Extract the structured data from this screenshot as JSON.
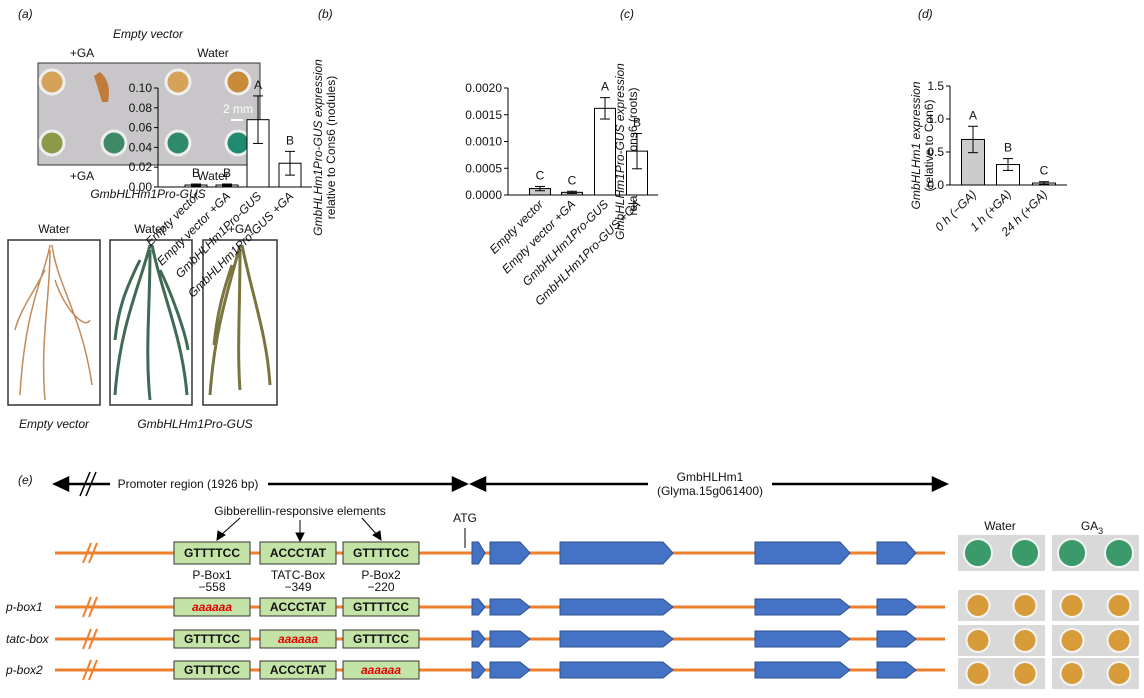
{
  "chart_data": [
    {
      "type": "bar",
      "panel": "(b)",
      "ylabel": [
        "GmbHLHm1Pro-GUS expression",
        "relative to Cons6 (nodules)"
      ],
      "categories": [
        "Empty vector",
        "Empty vector +GA",
        "GmbHLHm1Pro-GUS",
        "GmbHLHm1Pro-GUS +GA"
      ],
      "values": [
        0.002,
        0.002,
        0.068,
        0.024
      ],
      "errors": [
        0.001,
        0.001,
        0.024,
        0.012
      ],
      "letters": [
        "B",
        "B",
        "A",
        "B"
      ],
      "colors": [
        "#ffffff",
        "#ffffff",
        "#ffffff",
        "#ffffff"
      ],
      "ylim": [
        0,
        0.1
      ],
      "yticks": [
        {
          "value": 0,
          "label": "0.00"
        },
        {
          "value": 0.02,
          "label": "0.02"
        },
        {
          "value": 0.04,
          "label": "0.04"
        },
        {
          "value": 0.06,
          "label": "0.06"
        },
        {
          "value": 0.08,
          "label": "0.08"
        },
        {
          "value": 0.1,
          "label": "0.10"
        }
      ]
    },
    {
      "type": "bar",
      "panel": "(c)",
      "ylabel": [
        "GmbHLHm1Pro-GUS expression",
        "relative to Cons6 (roots)"
      ],
      "categories": [
        "Empty vector",
        "Empty vector +GA",
        "GmbHLHm1Pro-GUS",
        "GmbHLHm1Pro-GUS +GA"
      ],
      "values": [
        0.00012,
        5e-05,
        0.00162,
        0.00082
      ],
      "errors": [
        4e-05,
        2e-05,
        0.0002,
        0.00033
      ],
      "letters": [
        "C",
        "C",
        "A",
        "B"
      ],
      "colors": [
        "#cccccc",
        "#cccccc",
        "#ffffff",
        "#ffffff"
      ],
      "ylim": [
        0,
        0.002
      ],
      "yticks": [
        {
          "value": 0,
          "label": "0.0000"
        },
        {
          "value": 0.0005,
          "label": "0.0005"
        },
        {
          "value": 0.001,
          "label": "0.0010"
        },
        {
          "value": 0.0015,
          "label": "0.0015"
        },
        {
          "value": 0.002,
          "label": "0.0020"
        }
      ]
    },
    {
      "type": "bar",
      "panel": "(d)",
      "ylabel": [
        "GmbHLHm1 expression",
        "(relative to Con6)"
      ],
      "categories": [
        "0 h  (−GA)",
        "1 h (+GA)",
        "24 h (+GA)"
      ],
      "values": [
        0.69,
        0.31,
        0.03
      ],
      "errors": [
        0.2,
        0.09,
        0.02
      ],
      "letters": [
        "A",
        "B",
        "C"
      ],
      "colors": [
        "#cccccc",
        "#ffffff",
        "#ffffff"
      ],
      "ylim": [
        0,
        1.5
      ],
      "yticks": [
        {
          "value": 0,
          "label": "0.0"
        },
        {
          "value": 0.5,
          "label": "0.5"
        },
        {
          "value": 1,
          "label": "1.0"
        },
        {
          "value": 1.5,
          "label": "1.5"
        }
      ]
    }
  ],
  "panel_a": {
    "label": "(a)",
    "top_title": "Empty vector",
    "top_left": "+GA",
    "top_right": "Water",
    "scale": "2 mm",
    "bottom_left": "+GA",
    "bottom_right": "Water",
    "bottom_title": "GmbHLHm1Pro-GUS",
    "root_labels": [
      "Water",
      "Water",
      "+GA"
    ],
    "root_captions": [
      "Empty vector",
      "GmbHLHm1Pro-GUS"
    ]
  },
  "panel_e": {
    "label": "(e)",
    "promoter": "Promoter region (1926 bp)",
    "gene": "GmbHLHm1",
    "gene_id": "(Glyma.15g061400)",
    "elements_title": "Gibberellin-responsive elements",
    "atg": "ATG",
    "element_names": [
      [
        "P-Box1",
        "−558"
      ],
      [
        "TATC-Box",
        "−349"
      ],
      [
        "P-Box2",
        "−220"
      ]
    ],
    "constructs": [
      {
        "elements": [
          "GTTTTCC",
          "ACCCTAT",
          "GTTTTCC"
        ]
      },
      {
        "name": "p-box1",
        "elements": [
          "aaaaaa",
          "ACCCTAT",
          "GTTTTCC"
        ]
      },
      {
        "name": "tatc-box",
        "elements": [
          "GTTTTCC",
          "aaaaaa",
          "GTTTTCC"
        ]
      },
      {
        "name": "p-box2",
        "elements": [
          "GTTTTCC",
          "ACCCTAT",
          "aaaaaa"
        ]
      }
    ],
    "photo_labels": [
      "Water",
      "GA"
    ],
    "photo_label_sub": "3"
  }
}
